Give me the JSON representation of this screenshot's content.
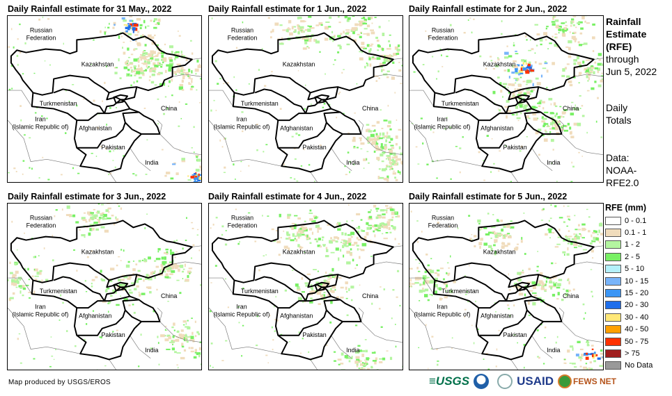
{
  "panels": [
    {
      "title": "Daily Rainfall estimate for 31 May., 2022"
    },
    {
      "title": "Daily Rainfall estimate for 1 Jun., 2022"
    },
    {
      "title": "Daily Rainfall estimate for 2 Jun., 2022"
    },
    {
      "title": "Daily Rainfall estimate for 3 Jun., 2022"
    },
    {
      "title": "Daily Rainfall estimate for 4 Jun., 2022"
    },
    {
      "title": "Daily Rainfall estimate for 5 Jun., 2022"
    }
  ],
  "map_labels": {
    "russia_1": "Russian",
    "russia_2": "Federation",
    "kazakhstan": "Kazakhstan",
    "turkmenistan": "Turkmenistan",
    "china": "China",
    "iran_1": "Iran",
    "iran_2": "(Islamic Republic of)",
    "afghanistan": "Afghanistan",
    "pakistan": "Pakistan",
    "india": "India"
  },
  "side": {
    "title_1": "Rainfall",
    "title_2": "Estimate",
    "title_3": "(RFE)",
    "through": "through",
    "date": "Jun 5, 2022",
    "daily": "Daily",
    "totals": "Totals",
    "data_label": "Data:",
    "data_1": "NOAA-",
    "data_2": "RFE2.0"
  },
  "legend": {
    "title": "RFE (mm)",
    "items": [
      {
        "label": "0 - 0.1",
        "color": "#ffffff"
      },
      {
        "label": "0.1 - 1",
        "color": "#f0dcbc"
      },
      {
        "label": "1 - 2",
        "color": "#b4f5a0"
      },
      {
        "label": "2 - 5",
        "color": "#78f064"
      },
      {
        "label": "5 - 10",
        "color": "#b4f0fa"
      },
      {
        "label": "10 - 15",
        "color": "#78b4fa"
      },
      {
        "label": "15 - 20",
        "color": "#3c96f5"
      },
      {
        "label": "20 - 30",
        "color": "#1e6eeb"
      },
      {
        "label": "30 - 40",
        "color": "#ffe878"
      },
      {
        "label": "40 - 50",
        "color": "#ffa000"
      },
      {
        "label": "50 - 75",
        "color": "#ff3200"
      },
      {
        "label": "> 75",
        "color": "#a01e1e"
      },
      {
        "label": "No Data",
        "color": "#999999"
      }
    ]
  },
  "credit": "Map produced by USGS/EROS",
  "logos": {
    "usgs": "USGS",
    "usaid": "USAID",
    "fewsnet": "FEWS NET"
  }
}
